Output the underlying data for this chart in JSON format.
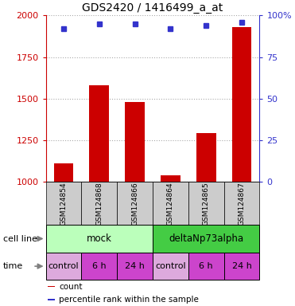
{
  "title": "GDS2420 / 1416499_a_at",
  "samples": [
    "GSM124854",
    "GSM124868",
    "GSM124866",
    "GSM124864",
    "GSM124865",
    "GSM124867"
  ],
  "counts": [
    1110,
    1580,
    1480,
    1040,
    1295,
    1930
  ],
  "percentile_ranks": [
    92,
    95,
    95,
    92,
    94,
    96
  ],
  "ylim_left": [
    1000,
    2000
  ],
  "ylim_right": [
    0,
    100
  ],
  "yticks_left": [
    1000,
    1250,
    1500,
    1750,
    2000
  ],
  "yticks_right": [
    0,
    25,
    50,
    75,
    100
  ],
  "ytick_right_labels": [
    "0",
    "25",
    "50",
    "75",
    "100%"
  ],
  "bar_color": "#cc0000",
  "dot_color": "#3333cc",
  "bar_width": 0.55,
  "cell_line_groups": [
    {
      "name": "mock",
      "span": [
        0,
        3
      ],
      "color": "#bbffbb"
    },
    {
      "name": "deltaNp73alpha",
      "span": [
        3,
        6
      ],
      "color": "#44cc44"
    }
  ],
  "time_groups": [
    {
      "name": "control",
      "span": [
        0,
        1
      ],
      "color": "#ddaadd"
    },
    {
      "name": "6 h",
      "span": [
        1,
        2
      ],
      "color": "#cc44cc"
    },
    {
      "name": "24 h",
      "span": [
        2,
        3
      ],
      "color": "#cc44cc"
    },
    {
      "name": "control",
      "span": [
        3,
        4
      ],
      "color": "#ddaadd"
    },
    {
      "name": "6 h",
      "span": [
        4,
        5
      ],
      "color": "#cc44cc"
    },
    {
      "name": "24 h",
      "span": [
        5,
        6
      ],
      "color": "#cc44cc"
    }
  ],
  "grid_color": "#aaaaaa",
  "sample_bg_color": "#cccccc",
  "left_axis_color": "#cc0000",
  "right_axis_color": "#3333cc",
  "fig_bg_color": "#ffffff",
  "cell_line_label": "cell line",
  "time_label": "time",
  "legend_items": [
    {
      "label": "count",
      "color": "#cc0000"
    },
    {
      "label": "percentile rank within the sample",
      "color": "#3333cc"
    }
  ]
}
